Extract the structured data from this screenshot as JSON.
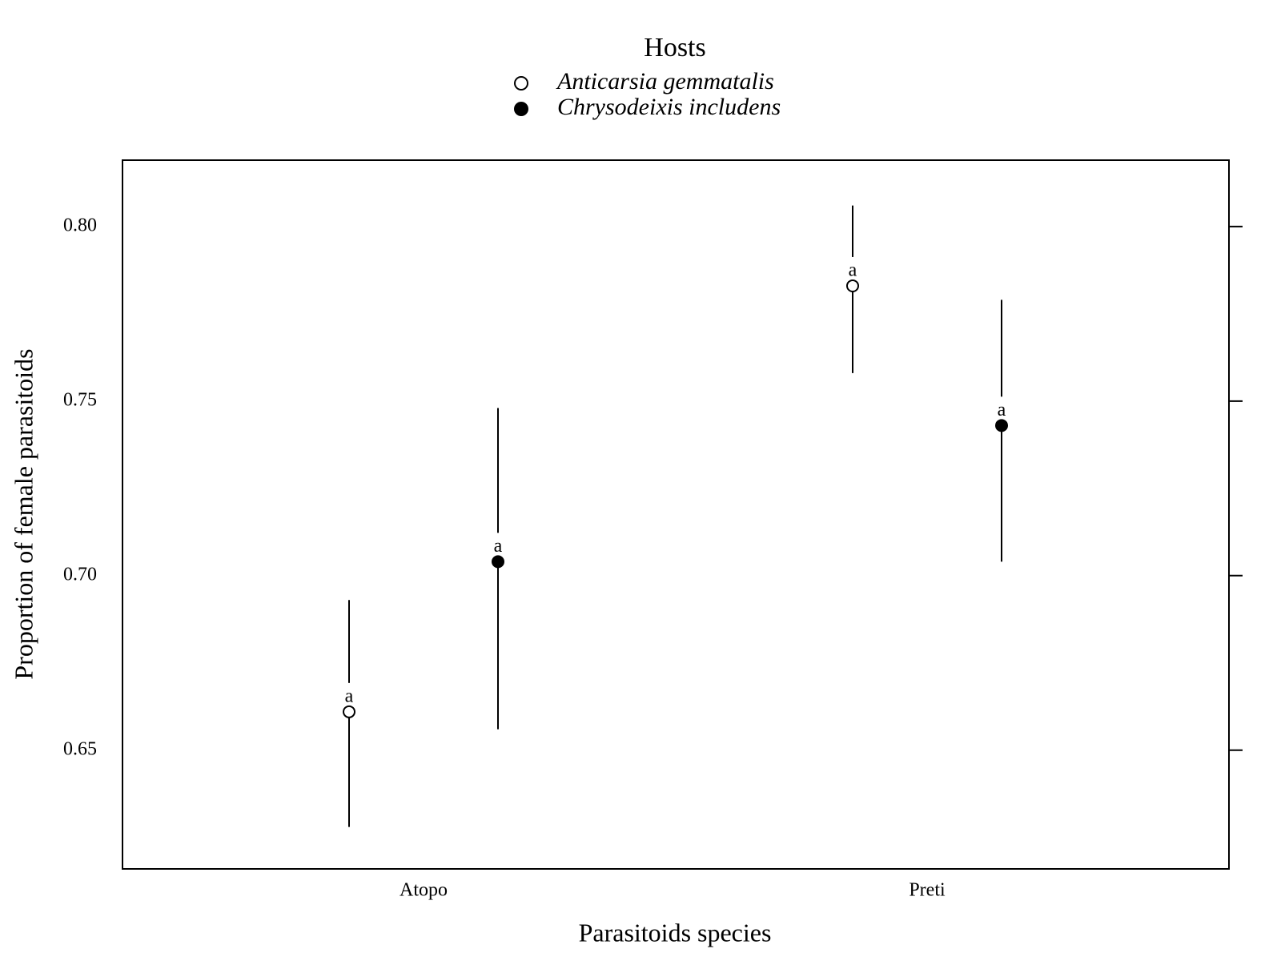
{
  "chart_data": {
    "type": "dot_errorbar",
    "legend_title": "Hosts",
    "xlabel": "Parasitoids species",
    "ylabel": "Proportion of female parasitoids",
    "categories": [
      "Atopo",
      "Preti"
    ],
    "series": [
      {
        "name": "Anticarsia gemmatalis",
        "marker": "open",
        "color": "#000000",
        "values": [
          0.661,
          0.783
        ],
        "lower": [
          0.628,
          0.758
        ],
        "upper": [
          0.693,
          0.806
        ],
        "labels": [
          "a",
          "a"
        ]
      },
      {
        "name": "Chrysodeixis includens",
        "marker": "filled",
        "color": "#000000",
        "values": [
          0.704,
          0.743
        ],
        "lower": [
          0.656,
          0.704
        ],
        "upper": [
          0.748,
          0.779
        ],
        "labels": [
          "a",
          "a"
        ]
      }
    ],
    "ylim": [
      0.616,
      0.819
    ],
    "yticks": [
      0.65,
      {
        "value": 0.7,
        "label": "0.70"
      },
      0.75,
      {
        "value": 0.8,
        "label": "0.80"
      }
    ],
    "grid": false
  }
}
